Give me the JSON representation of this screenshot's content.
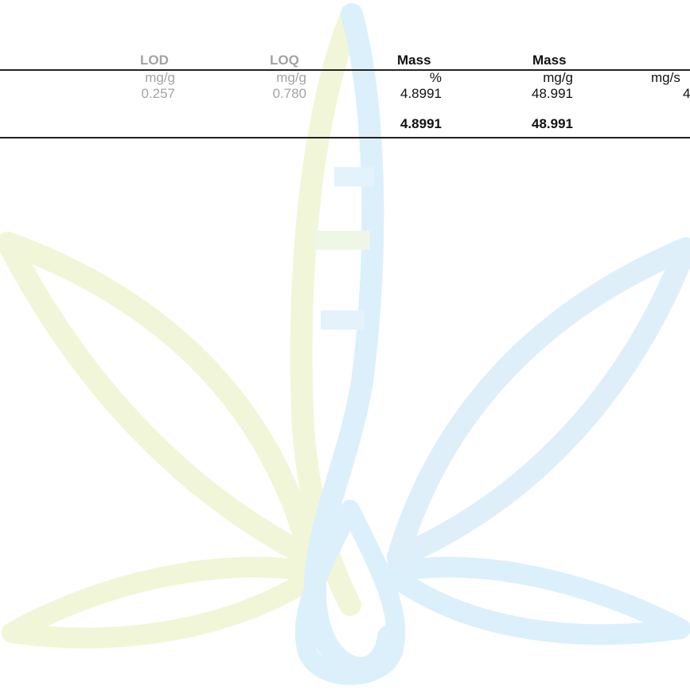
{
  "table": {
    "columns": [
      {
        "header": "LOD",
        "unit": "mg/g"
      },
      {
        "header": "LOQ",
        "unit": "mg/g"
      },
      {
        "header": "Mass",
        "unit": "%"
      },
      {
        "header": "Mass",
        "unit": "mg/g"
      },
      {
        "header": "",
        "unit": "mg/s"
      }
    ],
    "rows": [
      [
        "0.257",
        "0.780",
        "4.8991",
        "48.991",
        "4"
      ]
    ],
    "totals": [
      "4.8991",
      "48.991"
    ]
  },
  "colors": {
    "header_grey": "#a3a3a3",
    "text_dark": "#111111",
    "rule": "#222222",
    "watermark_green": "#f2f6dc",
    "watermark_blue": "#dcf0fb"
  },
  "watermark": {
    "icon": "cannabis-leaf-droplet-logo"
  }
}
